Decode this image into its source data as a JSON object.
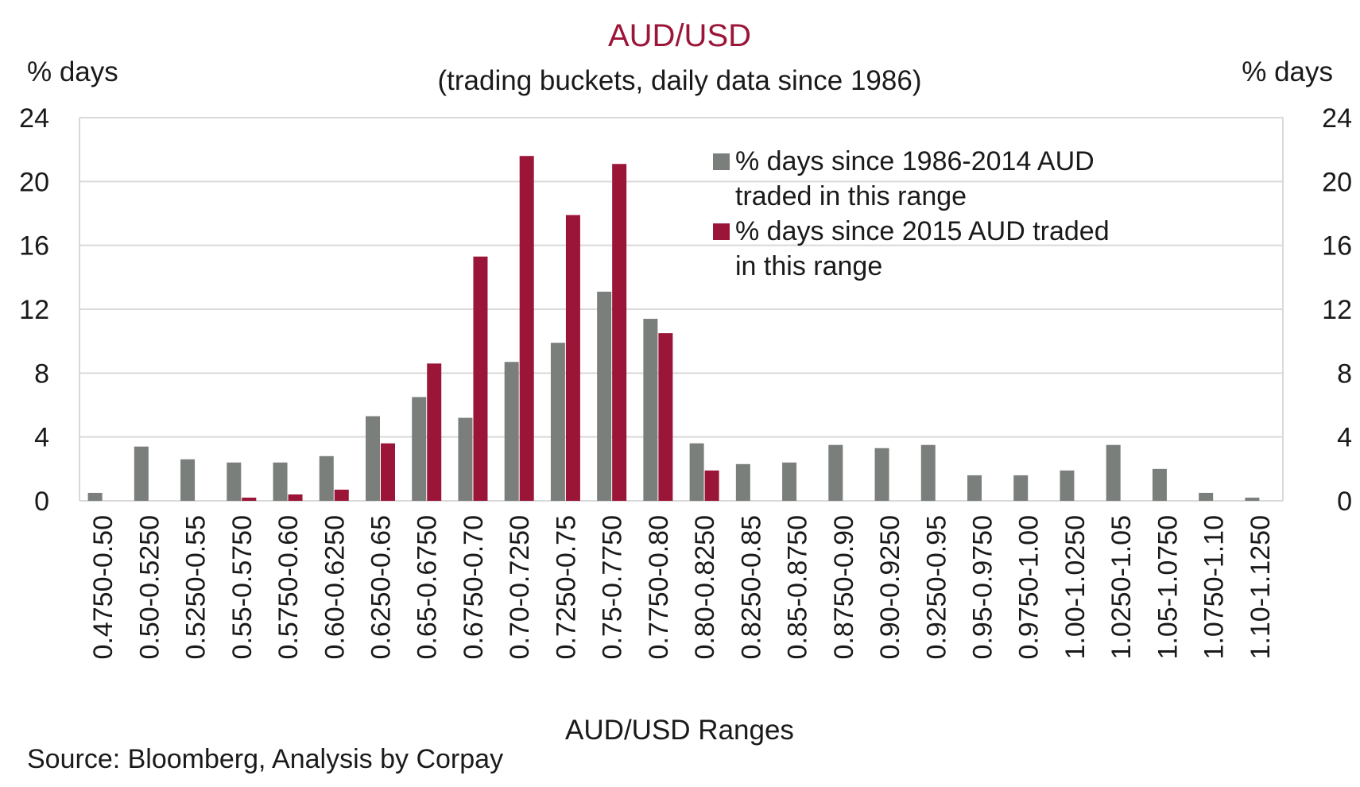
{
  "chart_data": {
    "type": "bar",
    "title": "AUD/USD",
    "subtitle": "(trading buckets, daily data since 1986)",
    "ylabel_left": "% days",
    "ylabel_right": "% days",
    "xlabel": "AUD/USD Ranges",
    "source": "Source: Bloomberg, Analysis by Corpay",
    "ylim": [
      0,
      24
    ],
    "yticks": [
      0,
      4,
      8,
      12,
      16,
      20,
      24
    ],
    "grid": true,
    "legend_position": "top-right",
    "categories": [
      "0.4750-0.50",
      "0.50-0.5250",
      "0.5250-0.55",
      "0.55-0.5750",
      "0.5750-0.60",
      "0.60-0.6250",
      "0.6250-0.65",
      "0.65-0.6750",
      "0.6750-0.70",
      "0.70-0.7250",
      "0.7250-0.75",
      "0.75-0.7750",
      "0.7750-0.80",
      "0.80-0.8250",
      "0.8250-0.85",
      "0.85-0.8750",
      "0.8750-0.90",
      "0.90-0.9250",
      "0.9250-0.95",
      "0.95-0.9750",
      "0.9750-1.00",
      "1.00-1.0250",
      "1.0250-1.05",
      "1.05-1.0750",
      "1.0750-1.10",
      "1.10-1.1250"
    ],
    "series": [
      {
        "name": "% days since 1986-2014 AUD traded in this range",
        "legend_lines": [
          "% days since 1986-2014 AUD",
          "traded in this range"
        ],
        "color": "#7a7f7b",
        "values": [
          0.5,
          3.4,
          2.6,
          2.4,
          2.4,
          2.8,
          5.3,
          6.5,
          5.2,
          8.7,
          9.9,
          13.1,
          11.4,
          3.6,
          2.3,
          2.4,
          3.5,
          3.3,
          3.5,
          1.6,
          1.6,
          1.9,
          3.5,
          2.0,
          0.5,
          0.2
        ]
      },
      {
        "name": "% days since 2015 AUD traded in this range",
        "legend_lines": [
          "% days since 2015 AUD traded",
          "in this range"
        ],
        "color": "#9b1538",
        "values": [
          0,
          0,
          0,
          0.2,
          0.4,
          0.7,
          3.6,
          8.6,
          15.3,
          21.6,
          17.9,
          21.1,
          10.5,
          1.9,
          0,
          0,
          0,
          0,
          0,
          0,
          0,
          0,
          0,
          0,
          0,
          0
        ]
      }
    ],
    "colors": {
      "title": "#9b1538",
      "text": "#1a1a1a",
      "grid": "#d9d9d9"
    }
  }
}
